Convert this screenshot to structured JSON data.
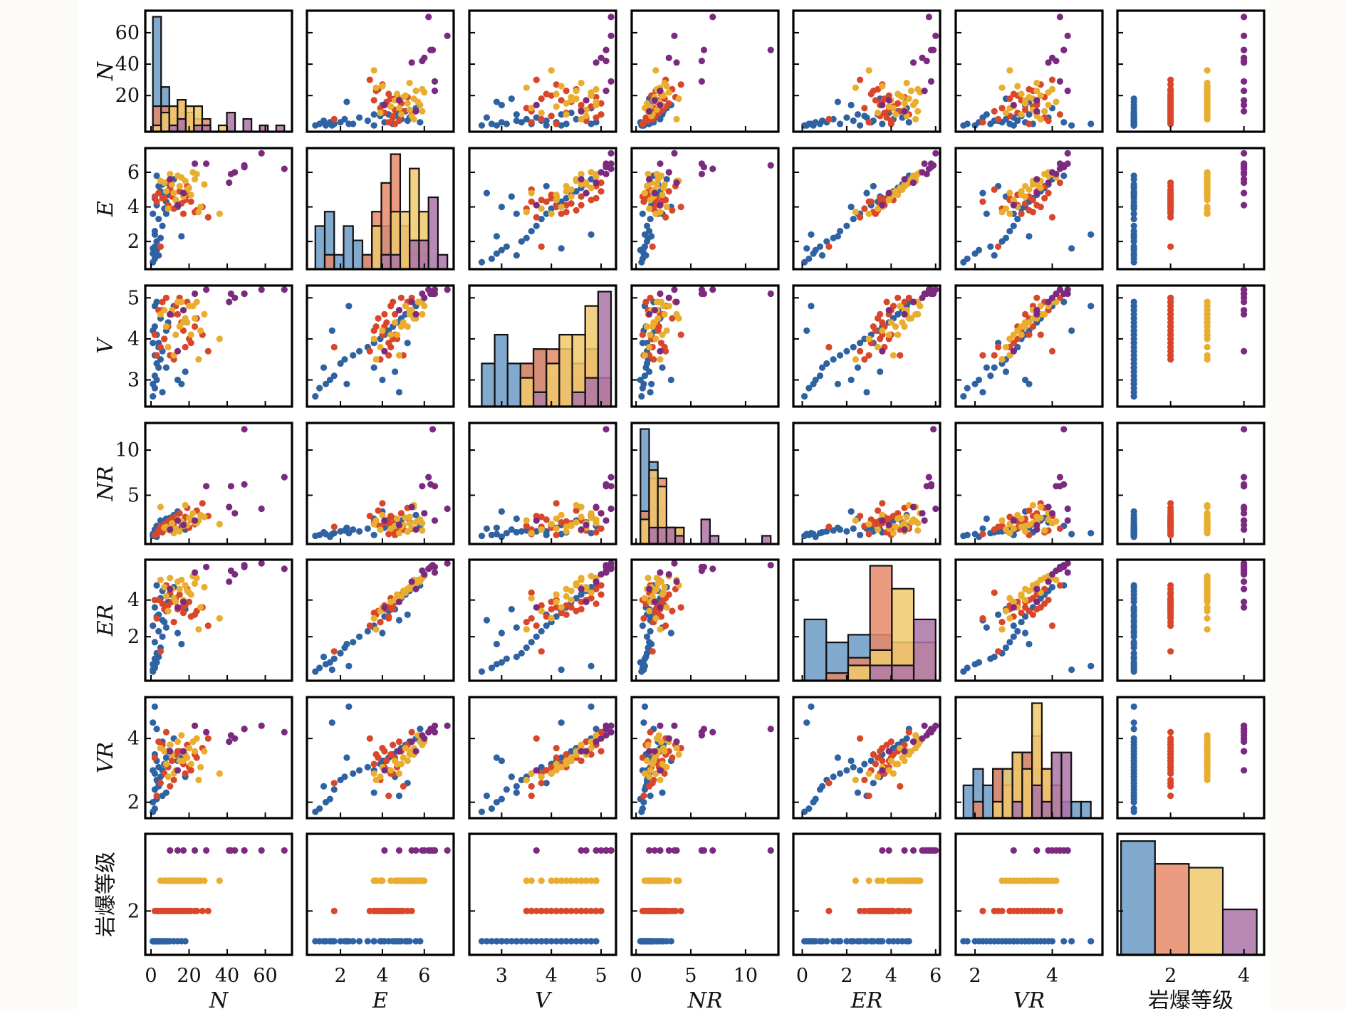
{
  "chart_data": {
    "type": "pairplot",
    "title": "",
    "variables": [
      "N",
      "E",
      "V",
      "NR",
      "ER",
      "VR",
      "岩爆等级"
    ],
    "variable_labels": [
      "N",
      "E",
      "V",
      "NR",
      "ER",
      "VR",
      "岩爆等级"
    ],
    "hue_variable": "岩爆等级",
    "classes": [
      {
        "grade": 1,
        "color": "#2e62a3",
        "hist_color": "#6b9bc6"
      },
      {
        "grade": 2,
        "color": "#d9472b",
        "hist_color": "#e6896a"
      },
      {
        "grade": 3,
        "color": "#e9ad2f",
        "hist_color": "#f1c96d"
      },
      {
        "grade": 4,
        "color": "#7b2a80",
        "hist_color": "#ad74a8"
      }
    ],
    "axes": {
      "N": {
        "lim": [
          -3,
          74
        ],
        "ticks": [
          0,
          20,
          40,
          60
        ],
        "ytick_labels": [
          "20",
          "40",
          "60"
        ],
        "yticks": [
          20,
          40,
          60
        ],
        "xtick_labels": [
          "0",
          "20",
          "40",
          "60"
        ]
      },
      "E": {
        "lim": [
          0.4,
          7.4
        ],
        "ticks": [
          2,
          4,
          6
        ],
        "yticks": [
          2,
          4,
          6
        ],
        "ytick_labels": [
          "2",
          "4",
          "6"
        ],
        "xtick_labels": [
          "2",
          "4",
          "6"
        ]
      },
      "V": {
        "lim": [
          2.35,
          5.3
        ],
        "ticks": [
          3,
          4,
          5
        ],
        "yticks": [
          3,
          4,
          5
        ],
        "ytick_labels": [
          "3",
          "4",
          "5"
        ],
        "xtick_labels": [
          "3",
          "4",
          "5"
        ]
      },
      "NR": {
        "lim": [
          -0.4,
          13.0
        ],
        "ticks": [
          0,
          5,
          10
        ],
        "yticks": [
          5,
          10
        ],
        "ytick_labels": [
          "5",
          "10"
        ],
        "xtick_labels": [
          "0",
          "5",
          "10"
        ]
      },
      "ER": {
        "lim": [
          -0.4,
          6.2
        ],
        "ticks": [
          0,
          2,
          4,
          6
        ],
        "yticks": [
          2,
          4
        ],
        "ytick_labels": [
          "2",
          "4"
        ],
        "xtick_labels": [
          "0",
          "2",
          "4",
          "6"
        ]
      },
      "VR": {
        "lim": [
          1.5,
          5.3
        ],
        "ticks": [
          2,
          4
        ],
        "yticks": [
          2,
          4
        ],
        "ytick_labels": [
          "2",
          "4"
        ],
        "xtick_labels": [
          "2",
          "4"
        ]
      },
      "岩爆等级": {
        "lim": [
          0.55,
          4.55
        ],
        "ticks": [
          2,
          4
        ],
        "yticks": [
          2
        ],
        "ytick_labels": [
          "2"
        ],
        "xtick_labels": [
          "2",
          "4"
        ]
      }
    },
    "diagonal": "histogram (stacked-overlay per class)",
    "off_diagonal": "scatter",
    "samples": [
      [
        1,
        0.8,
        2.6,
        0.5,
        0.1,
        1.7,
        1
      ],
      [
        2,
        1.0,
        2.8,
        0.6,
        0.3,
        1.8,
        1
      ],
      [
        1,
        1.3,
        2.9,
        0.7,
        0.5,
        2.0,
        1
      ],
      [
        3,
        1.5,
        3.0,
        0.4,
        0.6,
        2.1,
        1
      ],
      [
        2,
        1.7,
        3.1,
        0.8,
        0.8,
        2.4,
        1
      ],
      [
        4,
        1.2,
        3.3,
        0.9,
        0.9,
        2.5,
        1
      ],
      [
        3,
        2.0,
        3.4,
        1.0,
        1.1,
        2.7,
        1
      ],
      [
        5,
        2.2,
        3.5,
        1.1,
        1.4,
        2.8,
        1
      ],
      [
        2,
        2.6,
        3.6,
        1.2,
        1.7,
        2.9,
        1
      ],
      [
        6,
        2.9,
        3.7,
        1.0,
        2.0,
        3.0,
        1
      ],
      [
        4,
        3.3,
        3.8,
        1.3,
        2.3,
        3.1,
        1
      ],
      [
        1,
        3.6,
        3.9,
        0.6,
        2.6,
        3.0,
        1
      ],
      [
        7,
        3.9,
        4.0,
        1.5,
        2.8,
        3.2,
        1
      ],
      [
        3,
        4.1,
        4.1,
        1.4,
        3.1,
        3.3,
        1
      ],
      [
        8,
        4.3,
        4.2,
        1.7,
        3.4,
        3.4,
        1
      ],
      [
        2,
        4.5,
        4.3,
        0.9,
        3.6,
        3.5,
        1
      ],
      [
        9,
        4.7,
        4.4,
        1.9,
        3.9,
        3.6,
        1
      ],
      [
        5,
        4.9,
        4.5,
        2.2,
        4.1,
        3.7,
        1
      ],
      [
        10,
        5.1,
        4.6,
        2.5,
        4.3,
        3.8,
        1
      ],
      [
        6,
        5.3,
        4.7,
        2.0,
        4.5,
        3.9,
        1
      ],
      [
        12,
        5.6,
        4.8,
        2.8,
        4.7,
        4.0,
        1
      ],
      [
        3,
        5.8,
        4.9,
        1.6,
        4.8,
        4.3,
        1
      ],
      [
        14,
        4.0,
        3.0,
        3.2,
        2.2,
        3.3,
        1
      ],
      [
        16,
        2.3,
        2.9,
        1.4,
        1.6,
        3.4,
        1
      ],
      [
        1,
        1.6,
        4.2,
        0.7,
        0.2,
        4.5,
        1
      ],
      [
        2,
        2.4,
        4.8,
        0.8,
        0.4,
        5.0,
        1
      ],
      [
        18,
        4.6,
        3.2,
        1.2,
        3.5,
        2.8,
        1
      ],
      [
        4,
        5.2,
        3.9,
        1.0,
        3.2,
        2.6,
        1
      ],
      [
        6,
        4.8,
        2.7,
        1.3,
        2.9,
        2.2,
        1
      ],
      [
        8,
        3.6,
        3.3,
        2.4,
        2.5,
        2.3,
        1
      ],
      [
        3,
        4.3,
        3.6,
        0.7,
        3.0,
        2.2,
        2
      ],
      [
        5,
        1.7,
        3.8,
        1.5,
        1.2,
        2.6,
        2
      ],
      [
        7,
        4.5,
        4.0,
        1.8,
        3.5,
        2.9,
        2
      ],
      [
        9,
        4.1,
        4.3,
        2.1,
        3.7,
        3.1,
        2
      ],
      [
        11,
        4.6,
        4.6,
        2.4,
        3.9,
        3.3,
        2
      ],
      [
        13,
        4.4,
        4.8,
        2.7,
        4.1,
        3.5,
        2
      ],
      [
        15,
        4.9,
        5.0,
        3.0,
        4.3,
        3.6,
        2
      ],
      [
        17,
        3.6,
        4.2,
        2.0,
        3.3,
        3.2,
        2
      ],
      [
        19,
        5.2,
        4.9,
        3.6,
        4.6,
        3.8,
        2
      ],
      [
        21,
        4.3,
        3.9,
        2.3,
        3.1,
        3.0,
        2
      ],
      [
        24,
        3.8,
        4.5,
        3.3,
        3.4,
        3.4,
        2
      ],
      [
        27,
        4.0,
        4.1,
        4.1,
        3.6,
        3.7,
        2
      ],
      [
        30,
        3.4,
        3.7,
        2.7,
        2.6,
        4.0,
        2
      ],
      [
        4,
        4.8,
        4.7,
        1.1,
        4.0,
        3.9,
        2
      ],
      [
        8,
        5.4,
        5.0,
        1.3,
        4.8,
        4.2,
        2
      ],
      [
        12,
        3.9,
        3.5,
        1.6,
        2.8,
        2.7,
        2
      ],
      [
        16,
        4.2,
        4.4,
        1.9,
        3.6,
        3.3,
        2
      ],
      [
        20,
        4.7,
        4.0,
        1.4,
        3.9,
        3.1,
        2
      ],
      [
        6,
        4.5,
        4.9,
        0.9,
        3.8,
        3.8,
        2
      ],
      [
        10,
        5.0,
        3.6,
        1.2,
        4.4,
        2.5,
        2
      ],
      [
        14,
        4.1,
        4.6,
        2.2,
        3.5,
        3.6,
        2
      ],
      [
        18,
        4.4,
        3.8,
        2.6,
        3.7,
        2.9,
        2
      ],
      [
        23,
        3.7,
        4.3,
        1.8,
        3.2,
        3.5,
        2
      ],
      [
        2,
        4.6,
        4.1,
        0.6,
        4.0,
        3.4,
        2
      ],
      [
        5,
        5.5,
        4.6,
        3.7,
        5.1,
        3.7,
        3
      ],
      [
        8,
        4.9,
        4.3,
        1.5,
        4.2,
        3.2,
        3
      ],
      [
        11,
        5.3,
        4.7,
        1.9,
        4.6,
        3.5,
        3
      ],
      [
        14,
        5.8,
        4.9,
        2.3,
        5.0,
        3.9,
        3
      ],
      [
        17,
        4.6,
        4.4,
        1.6,
        4.0,
        3.3,
        3
      ],
      [
        20,
        5.1,
        4.8,
        2.5,
        4.4,
        3.7,
        3
      ],
      [
        23,
        5.6,
        4.5,
        2.0,
        4.9,
        3.6,
        3
      ],
      [
        26,
        4.0,
        4.2,
        2.8,
        3.6,
        3.1,
        3
      ],
      [
        36,
        3.6,
        4.0,
        1.8,
        3.0,
        2.9,
        3
      ],
      [
        10,
        5.9,
        4.6,
        1.1,
        5.2,
        3.8,
        3
      ],
      [
        13,
        4.4,
        4.1,
        1.3,
        3.9,
        3.0,
        3
      ],
      [
        16,
        5.7,
        4.9,
        2.1,
        5.1,
        4.1,
        3
      ],
      [
        19,
        5.0,
        4.4,
        1.7,
        4.5,
        3.4,
        3
      ],
      [
        22,
        6.0,
        4.8,
        3.0,
        5.3,
        3.9,
        3
      ],
      [
        25,
        3.7,
        3.5,
        2.2,
        2.4,
        2.7,
        3
      ],
      [
        7,
        5.4,
        4.7,
        1.4,
        4.7,
        3.6,
        3
      ],
      [
        12,
        4.8,
        3.6,
        0.8,
        4.1,
        2.9,
        3
      ],
      [
        15,
        5.2,
        4.3,
        1.0,
        4.6,
        3.3,
        3
      ],
      [
        18,
        5.5,
        4.5,
        3.9,
        4.8,
        3.5,
        3
      ],
      [
        21,
        4.7,
        4.1,
        2.4,
        4.3,
        3.2,
        3
      ],
      [
        24,
        5.9,
        4.9,
        1.9,
        5.2,
        4.0,
        3
      ],
      [
        9,
        3.9,
        3.8,
        1.2,
        3.4,
        2.8,
        3
      ],
      [
        28,
        5.3,
        4.6,
        2.6,
        4.7,
        3.6,
        3
      ],
      [
        70,
        6.2,
        5.2,
        7.0,
        5.7,
        4.2,
        4
      ],
      [
        58,
        7.1,
        5.2,
        3.5,
        6.0,
        4.4,
        4
      ],
      [
        49,
        6.4,
        5.1,
        12.3,
        5.9,
        4.3,
        4
      ],
      [
        49,
        6.3,
        5.1,
        6.2,
        5.8,
        4.3,
        4
      ],
      [
        44,
        6.0,
        5.0,
        3.0,
        5.4,
        4.0,
        4
      ],
      [
        41,
        5.4,
        4.9,
        3.7,
        5.0,
        3.9,
        4
      ],
      [
        42,
        5.9,
        5.1,
        6.0,
        5.6,
        4.1,
        4
      ],
      [
        29,
        6.5,
        5.2,
        6.0,
        5.8,
        4.2,
        4
      ],
      [
        23,
        6.5,
        5.1,
        2.2,
        5.5,
        4.4,
        4
      ],
      [
        17,
        4.8,
        4.7,
        1.7,
        3.9,
        3.6,
        4
      ],
      [
        14,
        4.1,
        3.7,
        2.2,
        3.6,
        3.0,
        4
      ],
      [
        10,
        5.6,
        4.6,
        1.2,
        4.6,
        3.6,
        4
      ]
    ]
  }
}
